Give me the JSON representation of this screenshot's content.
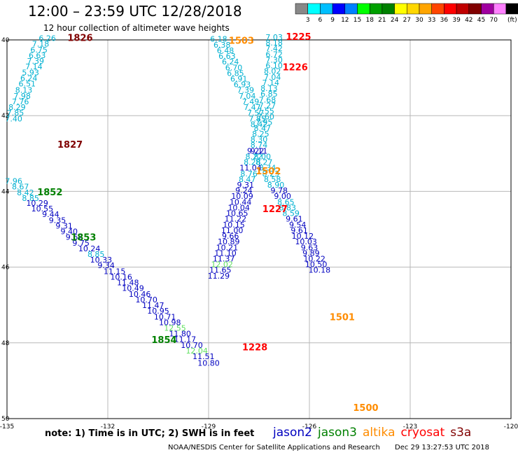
{
  "title": "12:00 – 23:59 UTC 12/28/2018",
  "subtitle": "12 hour collection of altimeter wave heights",
  "colorbar": {
    "labels": [
      "3",
      "6",
      "9",
      "12",
      "15",
      "18",
      "21",
      "24",
      "27",
      "30",
      "33",
      "36",
      "39",
      "42",
      "45",
      "70"
    ],
    "unit": "(ft)",
    "colors": [
      "#888888",
      "#00ffff",
      "#00bfff",
      "#0000ff",
      "#0080ff",
      "#00ff00",
      "#00a000",
      "#008000",
      "#ffff00",
      "#ffd700",
      "#ffa500",
      "#ff4500",
      "#ff0000",
      "#c00000",
      "#800000",
      "#a000a0",
      "#ff80ff",
      "#000000"
    ]
  },
  "axes": {
    "lon_ticks": [
      "-135",
      "-132",
      "-129",
      "-126",
      "-123",
      "-120"
    ],
    "lat_ticks": [
      "40",
      "42",
      "44",
      "46",
      "48",
      "50"
    ]
  },
  "colors": {
    "jason2": "#0000c0",
    "jason3": "#008000",
    "altika": "#ff8c00",
    "cryosat": "#ff0000",
    "s3a": "#800000",
    "cyan": "#00b0d0",
    "lightgreen": "#60e060",
    "grid": "#b8b8b8"
  },
  "time_labels": [
    {
      "t": "1826",
      "sat": "s3a",
      "lon": -133.2,
      "lat": 40.03
    },
    {
      "t": "1827",
      "sat": "s3a",
      "lon": -133.5,
      "lat": 42.85
    },
    {
      "t": "1852",
      "sat": "jason3",
      "lon": -134.1,
      "lat": 44.1
    },
    {
      "t": "1853",
      "sat": "jason3",
      "lon": -133.1,
      "lat": 45.3
    },
    {
      "t": "1854",
      "sat": "jason3",
      "lon": -130.7,
      "lat": 48.0
    },
    {
      "t": "1503",
      "sat": "altika",
      "lon": -128.4,
      "lat": 40.1
    },
    {
      "t": "1502",
      "sat": "altika",
      "lon": -127.6,
      "lat": 43.55
    },
    {
      "t": "1501",
      "sat": "altika",
      "lon": -125.4,
      "lat": 47.4
    },
    {
      "t": "1500",
      "sat": "altika",
      "lon": -124.7,
      "lat": 49.8
    },
    {
      "t": "1225",
      "sat": "cryosat",
      "lon": -126.7,
      "lat": 40.0
    },
    {
      "t": "1226",
      "sat": "cryosat",
      "lon": -126.8,
      "lat": 40.8
    },
    {
      "t": "1227",
      "sat": "cryosat",
      "lon": -127.4,
      "lat": 44.55
    },
    {
      "t": "1228",
      "sat": "cryosat",
      "lon": -128.0,
      "lat": 48.2
    }
  ],
  "tracks": [
    {
      "name": "s3a-track",
      "color": "cyan",
      "points": [
        [
          "6.26",
          -133.8,
          40.03
        ],
        [
          "7.18",
          -134.0,
          40.18
        ],
        [
          "6.75",
          -134.05,
          40.33
        ],
        [
          "6.63",
          -134.1,
          40.48
        ],
        [
          "7.39",
          -134.15,
          40.63
        ],
        [
          "7.14",
          -134.2,
          40.78
        ],
        [
          "5.93",
          -134.3,
          40.93
        ],
        [
          "6.24",
          -134.35,
          41.08
        ],
        [
          "6.51",
          -134.4,
          41.23
        ],
        [
          "8.13",
          -134.5,
          41.4
        ],
        [
          "7.98",
          -134.55,
          41.55
        ],
        [
          "7.76",
          -134.6,
          41.7
        ],
        [
          "8.29",
          -134.7,
          41.85
        ],
        [
          "7.85",
          -134.75,
          42.0
        ],
        [
          "7.40",
          -134.8,
          42.15
        ]
      ]
    },
    {
      "name": "jason3-jason2-track",
      "color": "jason2",
      "points": [
        [
          "7.96",
          -134.8,
          43.8
        ],
        [
          "8.67",
          -134.6,
          43.95
        ],
        [
          "8.42",
          -134.45,
          44.1
        ],
        [
          "8.85",
          -134.3,
          44.25
        ],
        [
          "10.29",
          -134.1,
          44.38
        ],
        [
          "10.55",
          -133.95,
          44.53
        ],
        [
          "9.44",
          -133.7,
          44.68
        ],
        [
          "9.35",
          -133.5,
          44.83
        ],
        [
          "9.31",
          -133.3,
          44.98
        ],
        [
          "9.40",
          -133.15,
          45.13
        ],
        [
          "9.62",
          -133.0,
          45.28
        ],
        [
          "9.75",
          -132.8,
          45.43
        ],
        [
          "10.24",
          -132.55,
          45.58
        ],
        [
          "8.85",
          -132.35,
          45.73
        ],
        [
          "10.33",
          -132.2,
          45.88
        ],
        [
          "9.34",
          -132.05,
          46.03
        ],
        [
          "11.15",
          -131.8,
          46.18
        ],
        [
          "10.16",
          -131.6,
          46.33
        ],
        [
          "11.48",
          -131.4,
          46.48
        ],
        [
          "10.49",
          -131.25,
          46.63
        ],
        [
          "10.46",
          -131.05,
          46.78
        ],
        [
          "10.70",
          -130.85,
          46.93
        ],
        [
          "11.47",
          -130.65,
          47.08
        ],
        [
          "10.95",
          -130.5,
          47.23
        ],
        [
          "10.71",
          -130.3,
          47.38
        ],
        [
          "10.98",
          -130.15,
          47.53
        ],
        [
          "12.55",
          -130.0,
          47.68
        ],
        [
          "11.80",
          -129.85,
          47.83
        ],
        [
          "11.17",
          -129.7,
          47.98
        ],
        [
          "10.70",
          -129.5,
          48.13
        ],
        [
          "12.04",
          -129.35,
          48.28
        ],
        [
          "11.51",
          -129.15,
          48.43
        ],
        [
          "10.80",
          -129.0,
          48.6
        ]
      ]
    },
    {
      "name": "altika-track-west",
      "color": "cyan",
      "points": [
        [
          "6.18",
          -128.7,
          40.05
        ],
        [
          "6.38",
          -128.6,
          40.2
        ],
        [
          "6.48",
          -128.5,
          40.35
        ],
        [
          "6.63",
          -128.45,
          40.5
        ],
        [
          "6.24",
          -128.35,
          40.65
        ],
        [
          "6.70",
          -128.25,
          40.8
        ],
        [
          "6.85",
          -128.2,
          40.95
        ],
        [
          "6.91",
          -128.1,
          41.1
        ],
        [
          "6.93",
          -128.0,
          41.25
        ],
        [
          "7.39",
          -127.9,
          41.4
        ],
        [
          "7.04",
          -127.85,
          41.55
        ],
        [
          "7.49",
          -127.75,
          41.7
        ],
        [
          "7.47",
          -127.7,
          41.85
        ],
        [
          "7.57",
          -127.6,
          42.0
        ],
        [
          "7.85",
          -127.55,
          42.15
        ],
        [
          "8.42",
          -127.5,
          42.3
        ]
      ]
    },
    {
      "name": "cryosat-track-north",
      "color": "cyan",
      "points": [
        [
          "7.03",
          -127.05,
          40.0
        ],
        [
          "8.18",
          -127.05,
          40.15
        ],
        [
          "7.42",
          -127.05,
          40.3
        ],
        [
          "6.72",
          -127.05,
          40.45
        ],
        [
          "7.30",
          -127.05,
          40.6
        ],
        [
          "6.10",
          -127.05,
          40.75
        ],
        [
          "8.02",
          -127.1,
          40.9
        ],
        [
          "7.04",
          -127.1,
          41.05
        ],
        [
          "7.14",
          -127.15,
          41.2
        ],
        [
          "8.13",
          -127.2,
          41.35
        ],
        [
          "6.85",
          -127.2,
          41.5
        ],
        [
          "7.68",
          -127.25,
          41.65
        ],
        [
          "7.27",
          -127.25,
          41.8
        ],
        [
          "7.55",
          -127.3,
          41.95
        ],
        [
          "7.60",
          -127.3,
          42.1
        ],
        [
          "7.95",
          -127.35,
          42.25
        ],
        [
          "8.47",
          -127.4,
          42.4
        ],
        [
          "8.25",
          -127.45,
          42.55
        ],
        [
          "8.30",
          -127.5,
          42.7
        ],
        [
          "8.74",
          -127.5,
          42.85
        ]
      ]
    },
    {
      "name": "cryosat-track-south",
      "color": "jason2",
      "points": [
        [
          "9.11",
          -127.5,
          43.0
        ],
        [
          "8.00",
          -127.4,
          43.15
        ],
        [
          "8.27",
          -127.35,
          43.3
        ],
        [
          "8.34",
          -127.25,
          43.45
        ],
        [
          "8.23",
          -127.15,
          43.6
        ],
        [
          "8.58",
          -127.1,
          43.75
        ],
        [
          "8.90",
          -127.0,
          43.9
        ],
        [
          "9.78",
          -126.9,
          44.05
        ],
        [
          "9.00",
          -126.8,
          44.2
        ],
        [
          "8.65",
          -126.7,
          44.35
        ],
        [
          "8.83",
          -126.65,
          44.5
        ],
        [
          "8.59",
          -126.55,
          44.65
        ],
        [
          "9.61",
          -126.45,
          44.8
        ],
        [
          "9.54",
          -126.35,
          44.95
        ],
        [
          "9.61",
          -126.3,
          45.1
        ],
        [
          "10.12",
          -126.2,
          45.25
        ],
        [
          "10.03",
          -126.1,
          45.4
        ],
        [
          "9.63",
          -126.0,
          45.55
        ],
        [
          "9.89",
          -125.95,
          45.7
        ],
        [
          "10.22",
          -125.85,
          45.85
        ],
        [
          "10.50",
          -125.8,
          46.0
        ],
        [
          "10.18",
          -125.7,
          46.15
        ]
      ]
    },
    {
      "name": "altika-track-south",
      "color": "jason2",
      "points": [
        [
          "9.22",
          -127.6,
          43.0
        ],
        [
          "8.22",
          -127.65,
          43.15
        ],
        [
          "8.28",
          -127.7,
          43.3
        ],
        [
          "11.04",
          -127.75,
          43.45
        ],
        [
          "8.76",
          -127.8,
          43.6
        ],
        [
          "8.47",
          -127.85,
          43.75
        ],
        [
          "9.31",
          -127.9,
          43.9
        ],
        [
          "9.24",
          -127.95,
          44.05
        ],
        [
          "10.09",
          -128.0,
          44.2
        ],
        [
          "10.44",
          -128.05,
          44.35
        ],
        [
          "10.04",
          -128.1,
          44.5
        ],
        [
          "10.65",
          -128.15,
          44.65
        ],
        [
          "11.22",
          -128.2,
          44.8
        ],
        [
          "10.15",
          -128.25,
          44.95
        ],
        [
          "11.00",
          -128.3,
          45.1
        ],
        [
          "9.66",
          -128.35,
          45.25
        ],
        [
          "10.89",
          -128.4,
          45.4
        ],
        [
          "10.21",
          -128.45,
          45.55
        ],
        [
          "11.10",
          -128.5,
          45.7
        ],
        [
          "11.37",
          -128.55,
          45.85
        ],
        [
          "12.02",
          -128.6,
          46.0
        ],
        [
          "11.65",
          -128.65,
          46.15
        ],
        [
          "11.29",
          -128.7,
          46.3
        ]
      ]
    }
  ],
  "note": "note:  1) Time is in UTC;  2) SWH is in feet",
  "missions": [
    {
      "name": "jason2",
      "color": "#0000c0"
    },
    {
      "name": "jason3",
      "color": "#008000"
    },
    {
      "name": "altika",
      "color": "#ff8c00"
    },
    {
      "name": "cryosat",
      "color": "#ff0000"
    },
    {
      "name": "s3a",
      "color": "#800000"
    }
  ],
  "footer": "NOAA/NESDIS Center for Satellite Applications and Research",
  "timestamp": "Dec 29 13:27:53 UTC 2018"
}
